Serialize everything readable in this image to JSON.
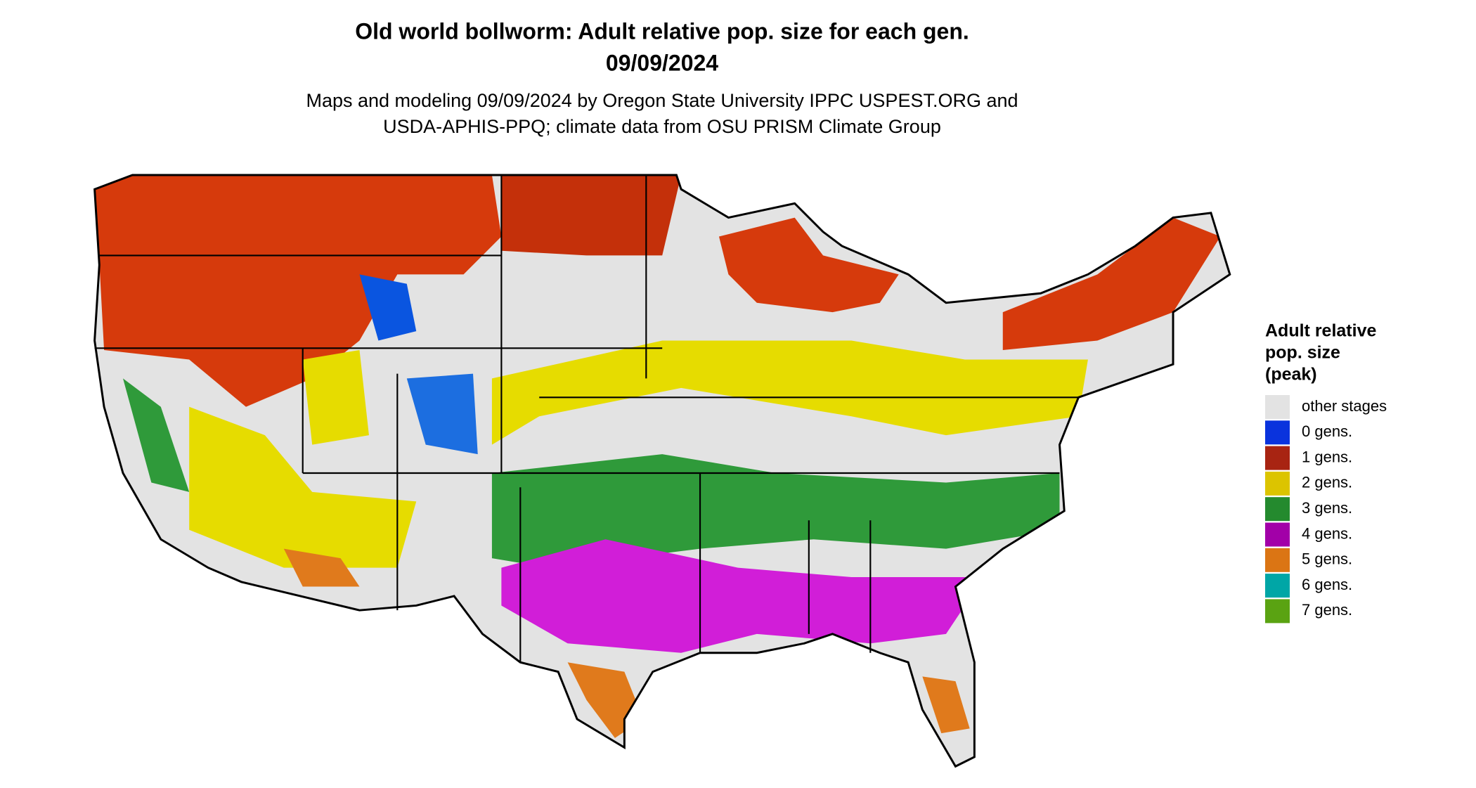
{
  "header": {
    "title": [
      "Old world bollworm: Adult relative pop. size for each gen.",
      "09/09/2024"
    ],
    "subtitle": [
      "Maps and modeling 09/09/2024 by Oregon State University IPPC USPEST.ORG and",
      "USDA-APHIS-PPQ; climate data from OSU PRISM Climate Group"
    ]
  },
  "legend": {
    "title": [
      "Adult relative",
      "pop. size",
      "(peak)"
    ],
    "items": [
      {
        "label": "other stages",
        "color": "#e3e3e3"
      },
      {
        "label": "0 gens.",
        "color": "#0a33dd"
      },
      {
        "label": "1 gens.",
        "color": "#a82412"
      },
      {
        "label": "2 gens.",
        "color": "#dcc400"
      },
      {
        "label": "3 gens.",
        "color": "#248a2e"
      },
      {
        "label": "4 gens.",
        "color": "#a200a8"
      },
      {
        "label": "5 gens.",
        "color": "#db7514"
      },
      {
        "label": "6 gens.",
        "color": "#00a6a6"
      },
      {
        "label": "7 gens.",
        "color": "#5aa312"
      }
    ]
  }
}
